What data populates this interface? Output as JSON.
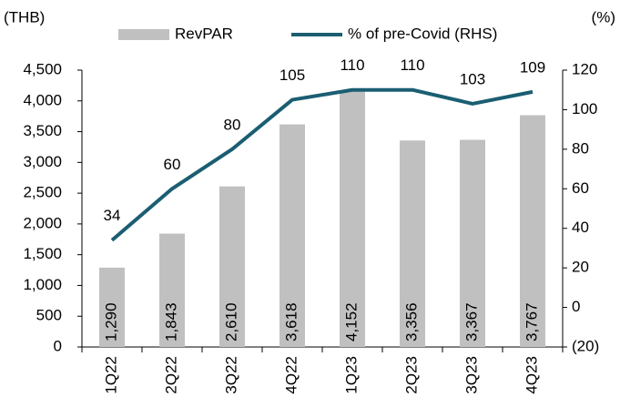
{
  "chart_data": {
    "type": "bar",
    "y_label": "(THB)",
    "y2_label": "(%)",
    "categories": [
      "1Q22",
      "2Q22",
      "3Q22",
      "4Q22",
      "1Q23",
      "2Q23",
      "3Q23",
      "4Q23"
    ],
    "series": [
      {
        "name": "RevPAR",
        "type": "bar",
        "color": "#c0c0c0",
        "values": [
          1290,
          1843,
          2610,
          3618,
          4152,
          3356,
          3367,
          3767
        ],
        "value_labels": [
          "1,290",
          "1,843",
          "2,610",
          "3,618",
          "4,152",
          "3,356",
          "3,367",
          "3,767"
        ]
      },
      {
        "name": "% of pre-Covid (RHS)",
        "type": "line",
        "axis": "y2",
        "color": "#1b5e72",
        "values": [
          34,
          60,
          80,
          105,
          110,
          110,
          103,
          109
        ]
      }
    ],
    "ylim": [
      0,
      4500
    ],
    "yticks": [
      0,
      500,
      {
        "value": 1000,
        "label": "1,000"
      },
      {
        "value": 1500,
        "label": "1,500"
      },
      {
        "value": 2000,
        "label": "2,000"
      },
      {
        "value": 2500,
        "label": "2,500"
      },
      {
        "value": 3000,
        "label": "3,000"
      },
      {
        "value": 3500,
        "label": "3,500"
      },
      {
        "value": 4000,
        "label": "4,000"
      },
      {
        "value": 4500,
        "label": "4,500"
      }
    ],
    "y2lim": [
      -20,
      120
    ],
    "y2ticks": [
      {
        "value": -20,
        "label": "(20)"
      },
      0,
      20,
      40,
      60,
      80,
      100,
      120
    ],
    "legend": "top",
    "grid": false
  }
}
